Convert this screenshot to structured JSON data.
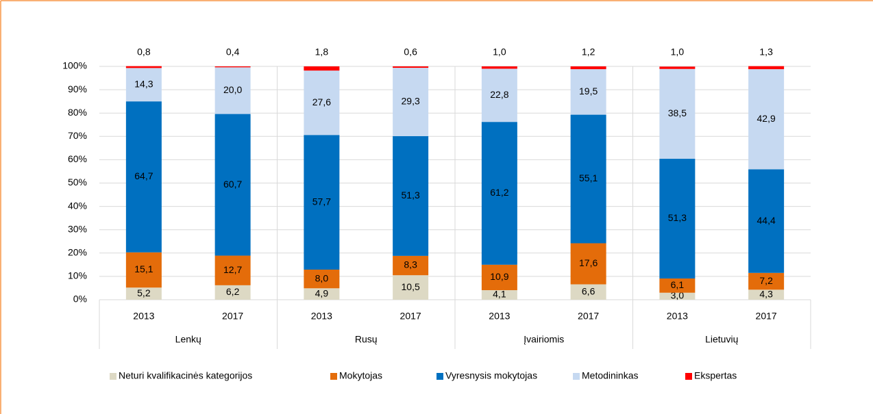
{
  "chart_data": {
    "type": "stacked_bar",
    "categories": [
      "2013",
      "2017",
      "2013",
      "2017",
      "2013",
      "2017",
      "2013",
      "2017"
    ],
    "groups": [
      "Lenkų",
      "Rusų",
      "Įvairiomis",
      "Lietuvių"
    ],
    "series": [
      {
        "name": "Neturi kvalifikacinės kategorijos",
        "color": "#ddd9c4",
        "values": [
          5.2,
          6.2,
          4.9,
          10.5,
          4.1,
          6.6,
          3.0,
          4.3
        ],
        "value_labels": [
          "5,2",
          "6,2",
          "4,9",
          "10,5",
          "4,1",
          "6,6",
          "3,0",
          "4,3"
        ]
      },
      {
        "name": "Mokytojas",
        "color": "#e46c0a",
        "values": [
          15.1,
          12.7,
          8.0,
          8.3,
          10.9,
          17.6,
          6.1,
          7.2
        ],
        "value_labels": [
          "15,1",
          "12,7",
          "8,0",
          "8,3",
          "10,9",
          "17,6",
          "6,1",
          "7,2"
        ]
      },
      {
        "name": "Vyresnysis mokytojas",
        "color": "#0070c0",
        "values": [
          64.7,
          60.7,
          57.7,
          51.3,
          61.2,
          55.1,
          51.3,
          44.4
        ],
        "value_labels": [
          "64,7",
          "60,7",
          "57,7",
          "51,3",
          "61,2",
          "55,1",
          "51,3",
          "44,4"
        ]
      },
      {
        "name": "Metodininkas",
        "color": "#c6d9f1",
        "values": [
          14.3,
          20.0,
          27.6,
          29.3,
          22.8,
          19.5,
          38.5,
          42.9
        ],
        "value_labels": [
          "14,3",
          "20,0",
          "27,6",
          "29,3",
          "22,8",
          "19,5",
          "38,5",
          "42,9"
        ]
      },
      {
        "name": "Ekspertas",
        "color": "#ff0000",
        "values": [
          0.8,
          0.4,
          1.8,
          0.6,
          1.0,
          1.2,
          1.0,
          1.3
        ],
        "value_labels": [
          "0,8",
          "0,4",
          "1,8",
          "0,6",
          "1,0",
          "1,2",
          "1,0",
          "1,3"
        ]
      }
    ],
    "ylim": [
      0,
      100
    ],
    "yticks": [
      {
        "value": 0,
        "label": "0%"
      },
      {
        "value": 10,
        "label": "10%"
      },
      {
        "value": 20,
        "label": "20%"
      },
      {
        "value": 30,
        "label": "30%"
      },
      {
        "value": 40,
        "label": "40%"
      },
      {
        "value": 50,
        "label": "50%"
      },
      {
        "value": 60,
        "label": "60%"
      },
      {
        "value": 70,
        "label": "70%"
      },
      {
        "value": 80,
        "label": "80%"
      },
      {
        "value": 90,
        "label": "90%"
      },
      {
        "value": 100,
        "label": "100%"
      }
    ],
    "grid": true,
    "legend": "bottom"
  }
}
